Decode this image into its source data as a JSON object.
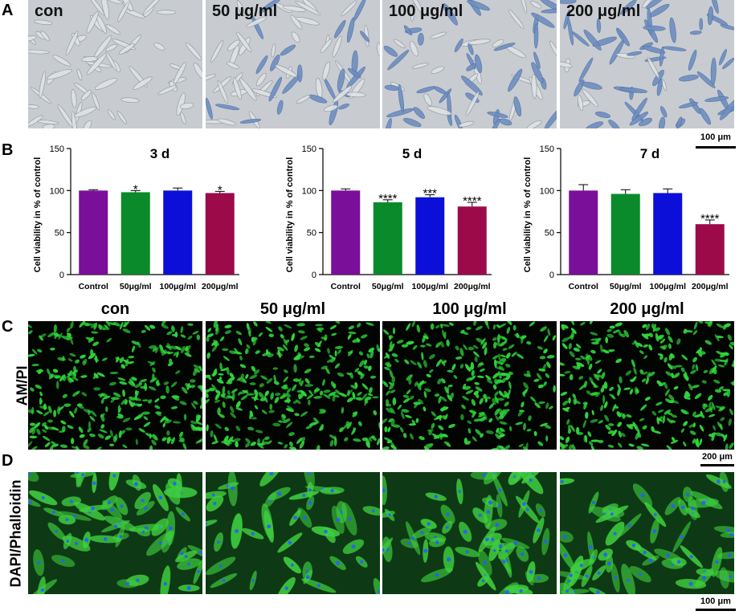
{
  "panels": {
    "A": "A",
    "B": "B",
    "C": "C",
    "D": "D"
  },
  "row_a_labels": [
    "con",
    "50 μg/ml",
    "100 μg/ml",
    "200 μg/ml"
  ],
  "row_c_headers": [
    "con",
    "50 μg/ml",
    "100 μg/ml",
    "200 μg/ml"
  ],
  "scalebars": {
    "a": "100 μm",
    "c": "200 μm",
    "d": "100 μm"
  },
  "row_labels": {
    "c": "AM/PI",
    "d": "DAPI/Phalloidin"
  },
  "colors": {
    "control": "#7a0f9a",
    "50": "#0a8a2a",
    "100": "#0b0fd8",
    "200": "#9c0a4a",
    "fluor_green": "#2fd63a",
    "nuclei_blue": "#2a5cff",
    "brightfield_bg": "#c8ccd0",
    "stain_blue": "#6f8fc0"
  },
  "chart_data": [
    {
      "type": "bar",
      "title": "3 d",
      "categories": [
        "Control",
        "50μg/ml",
        "100μg/ml",
        "200μg/ml"
      ],
      "values": [
        100,
        98,
        100,
        97
      ],
      "errors": [
        1,
        2,
        3,
        2
      ],
      "significance": [
        "",
        "*",
        "",
        "*"
      ],
      "ylabel": "Cell viability in % of control",
      "yticks": [
        "0",
        "50",
        "100",
        "150"
      ],
      "ylim": [
        0,
        150
      ]
    },
    {
      "type": "bar",
      "title": "5 d",
      "categories": [
        "Control",
        "50μg/ml",
        "100μg/ml",
        "200μg/ml"
      ],
      "values": [
        100,
        86,
        92,
        81
      ],
      "errors": [
        2,
        3,
        3,
        5
      ],
      "significance": [
        "",
        "****",
        "***",
        "****"
      ],
      "ylabel": "Cell viability in % of control",
      "yticks": [
        "0",
        "50",
        "100",
        "150"
      ],
      "ylim": [
        0,
        150
      ]
    },
    {
      "type": "bar",
      "title": "7 d",
      "categories": [
        "Control",
        "50μg/ml",
        "100μg/ml",
        "200μg/ml"
      ],
      "values": [
        100,
        96,
        97,
        60
      ],
      "errors": [
        7,
        5,
        5,
        5
      ],
      "significance": [
        "",
        "",
        "",
        "****"
      ],
      "ylabel": "Cell viability in % of control",
      "yticks": [
        "0",
        "50",
        "100",
        "150"
      ],
      "ylim": [
        0,
        150
      ]
    }
  ]
}
